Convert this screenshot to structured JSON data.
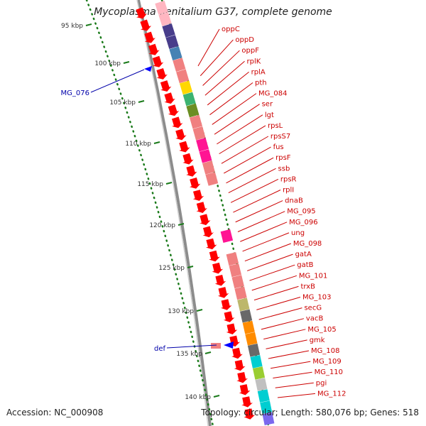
{
  "title": "Mycoplasma genitalium G37, complete genome",
  "accession": "Accession: NC_000908",
  "topology": "Topology: circular; Length: 580,076 bp; Genes: 518",
  "colors": {
    "backbone": "#8c8c8c",
    "forward_gene": "#ff0000",
    "reverse_gene": "#0000ff",
    "tick": "#1a7a1a",
    "forward_label": "#cc0000",
    "reverse_label": "#0000aa"
  },
  "kbp_ticks": [
    "95 kbp",
    "100 kbp",
    "105 kbp",
    "110 kbp",
    "115 kbp",
    "120 kbp",
    "125 kbp",
    "130 kbp",
    "135 kbp",
    "140 kbp"
  ],
  "reverse_labels": [
    "MG_076",
    "def"
  ],
  "forward_labels": [
    "oppC",
    "oppD",
    "oppF",
    "rplK",
    "rplA",
    "pth",
    "MG_084",
    "ser",
    "lgt",
    "rpsL",
    "rpsS7",
    "fus",
    "rpsF",
    "ssb",
    "rpsR",
    "rplI",
    "dnaB",
    "MG_095",
    "MG_096",
    "ung",
    "MG_098",
    "gatA",
    "gatB",
    "MG_101",
    "trxB",
    "MG_103",
    "secG",
    "vacB",
    "MG_105",
    "gmk",
    "MG_108",
    "MG_109",
    "MG_110",
    "pgi",
    "MG_112"
  ],
  "cog_palette": [
    "#f08080",
    "#ff1493",
    "#3cb371",
    "#ffd700",
    "#6b8e23",
    "#00bfff",
    "#ff8c00",
    "#bdb76b",
    "#696969",
    "#9acd32",
    "#c0c0c0",
    "#483d8b",
    "#4682b4",
    "#ffb6c1",
    "#00ced1",
    "#7b68ee"
  ]
}
